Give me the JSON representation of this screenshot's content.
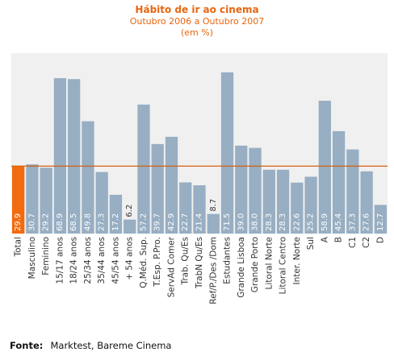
{
  "chart_data": {
    "type": "bar",
    "title": "Hábito de ir ao cinema",
    "subtitle": "Outubro 2006 a Outubro 2007",
    "unit": "(em %)",
    "categories": [
      "Total",
      "Masculino",
      "Feminino",
      "15/17 anos",
      "18/24 anos",
      "25/34 anos",
      "35/44 anos",
      "45/54 anos",
      "+ 54  anos",
      "Q.Méd. Sup.",
      "T.Esp. P.Pro.",
      "ServAd Comer",
      "Trab. Qu/Es",
      "TrabN Qu/Es",
      "Ref/P./Des /Dom",
      "Estudantes",
      "Grande Lisboa",
      "Grande Porto",
      "Litoral Norte",
      "Litoral Centro",
      "Inter. Norte",
      "Sul",
      "A",
      "B",
      "C1",
      "C2",
      "D"
    ],
    "values": [
      29.9,
      30.7,
      29.2,
      68.9,
      68.5,
      49.8,
      27.3,
      17.2,
      6.2,
      57.2,
      39.7,
      42.9,
      22.7,
      21.4,
      8.7,
      71.5,
      39.0,
      38.0,
      28.3,
      28.3,
      22.6,
      25.2,
      58.9,
      45.4,
      37.3,
      27.6,
      12.7
    ],
    "highlight_index": 0,
    "reference_line": 29.9,
    "ylim": [
      0,
      80
    ],
    "grid": false,
    "colors": {
      "bar": "#97aec3",
      "highlight": "#f26b0f",
      "reference_line": "#d95f0e",
      "plot_background": "#f0f0f0",
      "title": "#e8650f"
    }
  },
  "source": {
    "label": "Fonte:",
    "text": "Marktest, Bareme Cinema"
  }
}
